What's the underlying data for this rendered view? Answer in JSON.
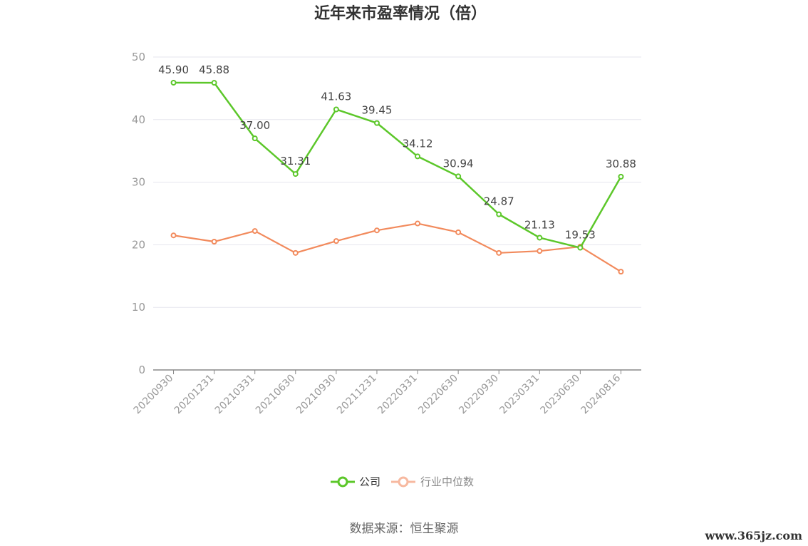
{
  "title": "近年来市盈率情况（倍）",
  "source_text": "数据来源：恒生聚源",
  "watermark": "www.365jz.com",
  "colors": {
    "company": "#5cc72a",
    "industry": "#f28a5c",
    "legend_industry": "#f7b9a0",
    "grid": "#e6e6ee",
    "axis": "#999999"
  },
  "chart_data": {
    "type": "line",
    "title": "近年来市盈率情况（倍）",
    "xlabel": "",
    "ylabel": "",
    "ylim": [
      0,
      50
    ],
    "yticks": [
      0,
      10,
      20,
      30,
      40,
      50
    ],
    "grid": true,
    "legend_position": "bottom-center",
    "categories": [
      "20200930",
      "20201231",
      "20210331",
      "20210630",
      "20210930",
      "20211231",
      "20220331",
      "20220630",
      "20220930",
      "20230331",
      "20230630",
      "20240816"
    ],
    "series": [
      {
        "name": "公司",
        "values": [
          45.9,
          45.88,
          37.0,
          31.31,
          41.63,
          39.45,
          34.12,
          30.94,
          24.87,
          21.13,
          19.53,
          30.88
        ],
        "labels": [
          "45.90",
          "45.88",
          "37.00",
          "31.31",
          "41.63",
          "39.45",
          "34.12",
          "30.94",
          "24.87",
          "21.13",
          "19.53",
          "30.88"
        ]
      },
      {
        "name": "行业中位数",
        "values": [
          21.5,
          20.5,
          22.2,
          18.7,
          20.6,
          22.3,
          23.4,
          22.0,
          18.7,
          19.0,
          19.7,
          15.7
        ]
      }
    ]
  }
}
